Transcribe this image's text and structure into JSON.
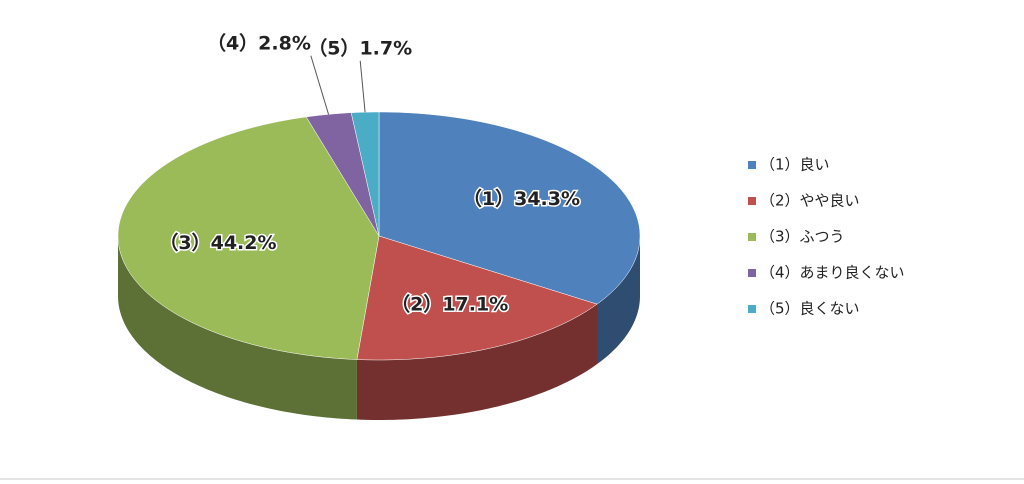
{
  "chart_data": {
    "type": "pie",
    "categories": [
      "（1）良い",
      "（2）やや良い",
      "（3）ふつう",
      "（4）あまり良くない",
      "（5）良くない"
    ],
    "values": [
      34.3,
      17.1,
      44.2,
      2.8,
      1.7
    ],
    "value_labels": [
      "（1）34.3%",
      "（2）17.1%",
      "（3）44.2%",
      "（4）2.8%",
      "（5）1.7%"
    ],
    "colors": [
      "#4f81bd",
      "#c0504d",
      "#9bbb59",
      "#8064a2",
      "#4bacc6"
    ],
    "legend": "right"
  }
}
